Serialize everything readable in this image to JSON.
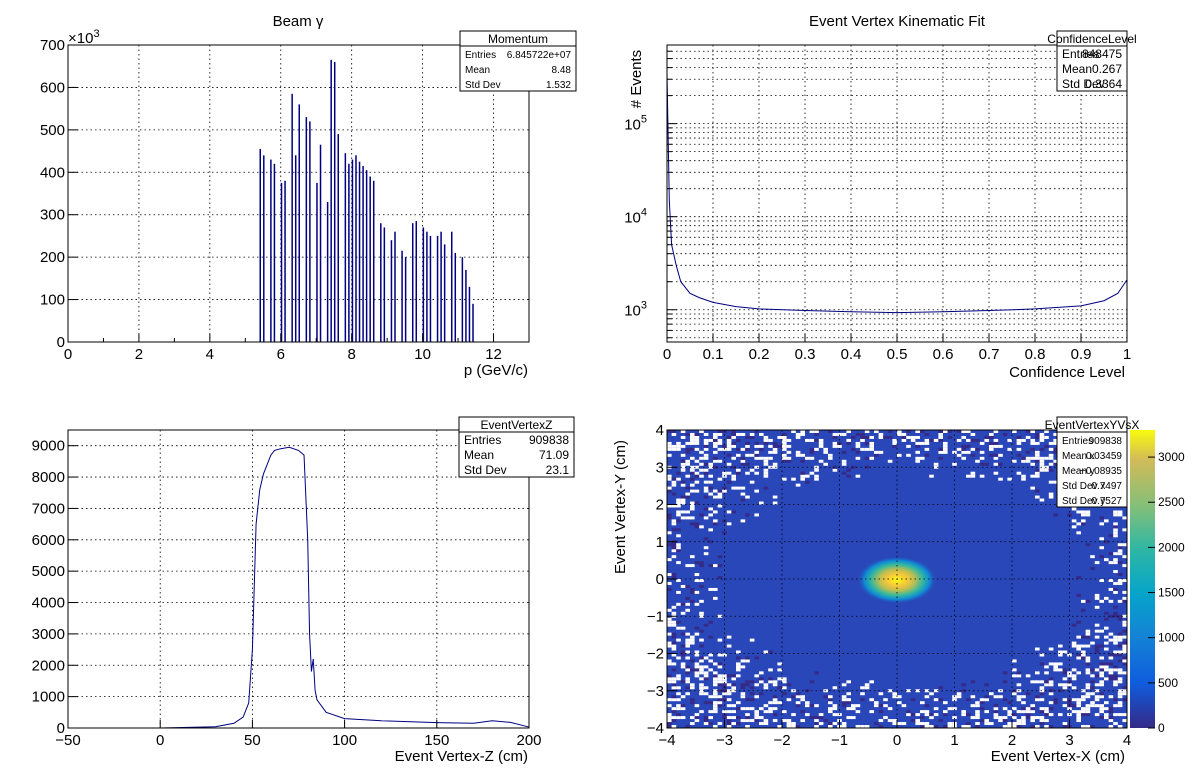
{
  "chart_data": [
    {
      "type": "bar",
      "title": "Beam γ",
      "xlabel": "p (GeV/c)",
      "ylabel": "",
      "exponent_label": "×10",
      "exponent_power": "3",
      "xlim": [
        0,
        13
      ],
      "ylim": [
        0,
        700
      ],
      "xticks": [
        "0",
        "2",
        "4",
        "6",
        "8",
        "10",
        "12"
      ],
      "yticks": [
        "0",
        "100",
        "200",
        "300",
        "400",
        "500",
        "600",
        "700"
      ],
      "grid": true,
      "stats": {
        "name": "Momentum",
        "rows": [
          [
            "Entries",
            "6.845722e+07"
          ],
          [
            "Mean",
            "8.48"
          ],
          [
            "Std Dev",
            "1.532"
          ]
        ]
      },
      "x": [
        5.4,
        5.5,
        5.6,
        5.7,
        5.8,
        5.9,
        6.0,
        6.1,
        6.2,
        6.3,
        6.4,
        6.5,
        6.6,
        6.7,
        6.8,
        6.9,
        7.0,
        7.1,
        7.2,
        7.3,
        7.4,
        7.5,
        7.6,
        7.7,
        7.8,
        7.9,
        8.0,
        8.1,
        8.2,
        8.3,
        8.4,
        8.5,
        8.6,
        8.7,
        8.8,
        8.9,
        9.0,
        9.1,
        9.2,
        9.3,
        9.4,
        9.5,
        9.6,
        9.7,
        9.8,
        9.9,
        10.0,
        10.1,
        10.2,
        10.3,
        10.4,
        10.5,
        10.6,
        10.7,
        10.8,
        10.9,
        11.0,
        11.1,
        11.2,
        11.3,
        11.4
      ],
      "values": [
        455,
        440,
        0,
        430,
        420,
        0,
        375,
        380,
        0,
        585,
        440,
        560,
        0,
        530,
        520,
        0,
        375,
        465,
        0,
        330,
        665,
        660,
        490,
        0,
        445,
        420,
        430,
        440,
        425,
        415,
        405,
        390,
        380,
        0,
        280,
        270,
        0,
        240,
        260,
        0,
        215,
        200,
        0,
        280,
        285,
        0,
        270,
        260,
        250,
        0,
        250,
        260,
        230,
        0,
        260,
        210,
        0,
        200,
        170,
        130,
        90
      ]
    },
    {
      "type": "line",
      "title": "Event Vertex Kinematic Fit",
      "xlabel": "Confidence Level",
      "ylabel": "# Events",
      "log_y": true,
      "xlim": [
        0,
        1
      ],
      "ylim": [
        450,
        700000
      ],
      "xticks": [
        "0",
        "0.1",
        "0.2",
        "0.3",
        "0.4",
        "0.5",
        "0.6",
        "0.7",
        "0.8",
        "0.9",
        "1"
      ],
      "yticks": [
        {
          "base": "10",
          "exp": "3",
          "value": 1000
        },
        {
          "base": "10",
          "exp": "4",
          "value": 10000
        },
        {
          "base": "10",
          "exp": "5",
          "value": 100000
        }
      ],
      "grid": true,
      "stats": {
        "name": "ConfidenceLevel",
        "rows": [
          [
            "Entries",
            "848475"
          ],
          [
            "Mean",
            "0.267"
          ],
          [
            "Std Dev",
            "0.3364"
          ]
        ]
      },
      "x": [
        0.0,
        0.005,
        0.01,
        0.02,
        0.03,
        0.05,
        0.07,
        0.1,
        0.15,
        0.2,
        0.3,
        0.4,
        0.5,
        0.6,
        0.7,
        0.8,
        0.9,
        0.95,
        0.98,
        1.0
      ],
      "values": [
        350000,
        15000,
        5000,
        3000,
        2000,
        1500,
        1350,
        1200,
        1080,
        1020,
        980,
        950,
        930,
        950,
        980,
        1020,
        1100,
        1250,
        1500,
        2100
      ]
    },
    {
      "type": "line",
      "title": "",
      "xlabel": "Event Vertex-Z (cm)",
      "ylabel": "",
      "xlim": [
        -50,
        200
      ],
      "ylim": [
        0,
        9500
      ],
      "xticks": [
        "−50",
        "0",
        "50",
        "100",
        "150",
        "200"
      ],
      "yticks": [
        "0",
        "1000",
        "2000",
        "3000",
        "4000",
        "5000",
        "6000",
        "7000",
        "8000",
        "9000"
      ],
      "grid": true,
      "stats": {
        "name": "EventVertexZ",
        "rows": [
          [
            "Entries",
            "909838"
          ],
          [
            "Mean",
            "71.09"
          ],
          [
            "Std Dev",
            "23.1"
          ]
        ]
      },
      "x": [
        -50,
        0,
        30,
        40,
        45,
        48,
        50,
        52,
        54,
        56,
        58,
        60,
        62,
        65,
        70,
        75,
        78,
        80,
        81,
        82,
        83,
        84,
        85,
        90,
        100,
        120,
        150,
        170,
        180,
        190,
        200
      ],
      "values": [
        0,
        0,
        40,
        150,
        350,
        800,
        2500,
        6500,
        7600,
        8100,
        8400,
        8700,
        8850,
        8900,
        8950,
        8850,
        8700,
        6000,
        3000,
        1800,
        2200,
        1200,
        900,
        500,
        300,
        230,
        170,
        150,
        230,
        180,
        30
      ]
    },
    {
      "type": "heatmap",
      "title": "",
      "xlabel": "Event Vertex-X (cm)",
      "ylabel": "Event Vertex-Y (cm)",
      "xlim": [
        -4,
        4
      ],
      "ylim": [
        -4,
        4
      ],
      "zlim": [
        0,
        3300
      ],
      "xticks": [
        "−4",
        "−3",
        "−2",
        "−1",
        "0",
        "1",
        "2",
        "3",
        "4"
      ],
      "yticks": [
        "−4",
        "−3",
        "−2",
        "−1",
        "0",
        "1",
        "2",
        "3",
        "4"
      ],
      "zticks": [
        "0",
        "500",
        "1000",
        "1500",
        "2000",
        "2500",
        "3000"
      ],
      "grid": true,
      "peak": {
        "x": 0.0,
        "y": 0.0,
        "value": 3300
      },
      "stats": {
        "name": "EventVertexYVsX",
        "rows": [
          [
            "Entries",
            "909838"
          ],
          [
            "Mean x",
            "0.03459"
          ],
          [
            "Mean y",
            "−0.08935"
          ],
          [
            "Std Dev x",
            "0.7497"
          ],
          [
            "Std Dev y",
            "0.7527"
          ]
        ]
      },
      "colors": {
        "low": "#352a87",
        "mid": "#2d93a8",
        "high": "#f9fb0e",
        "line": "#000080"
      }
    }
  ]
}
